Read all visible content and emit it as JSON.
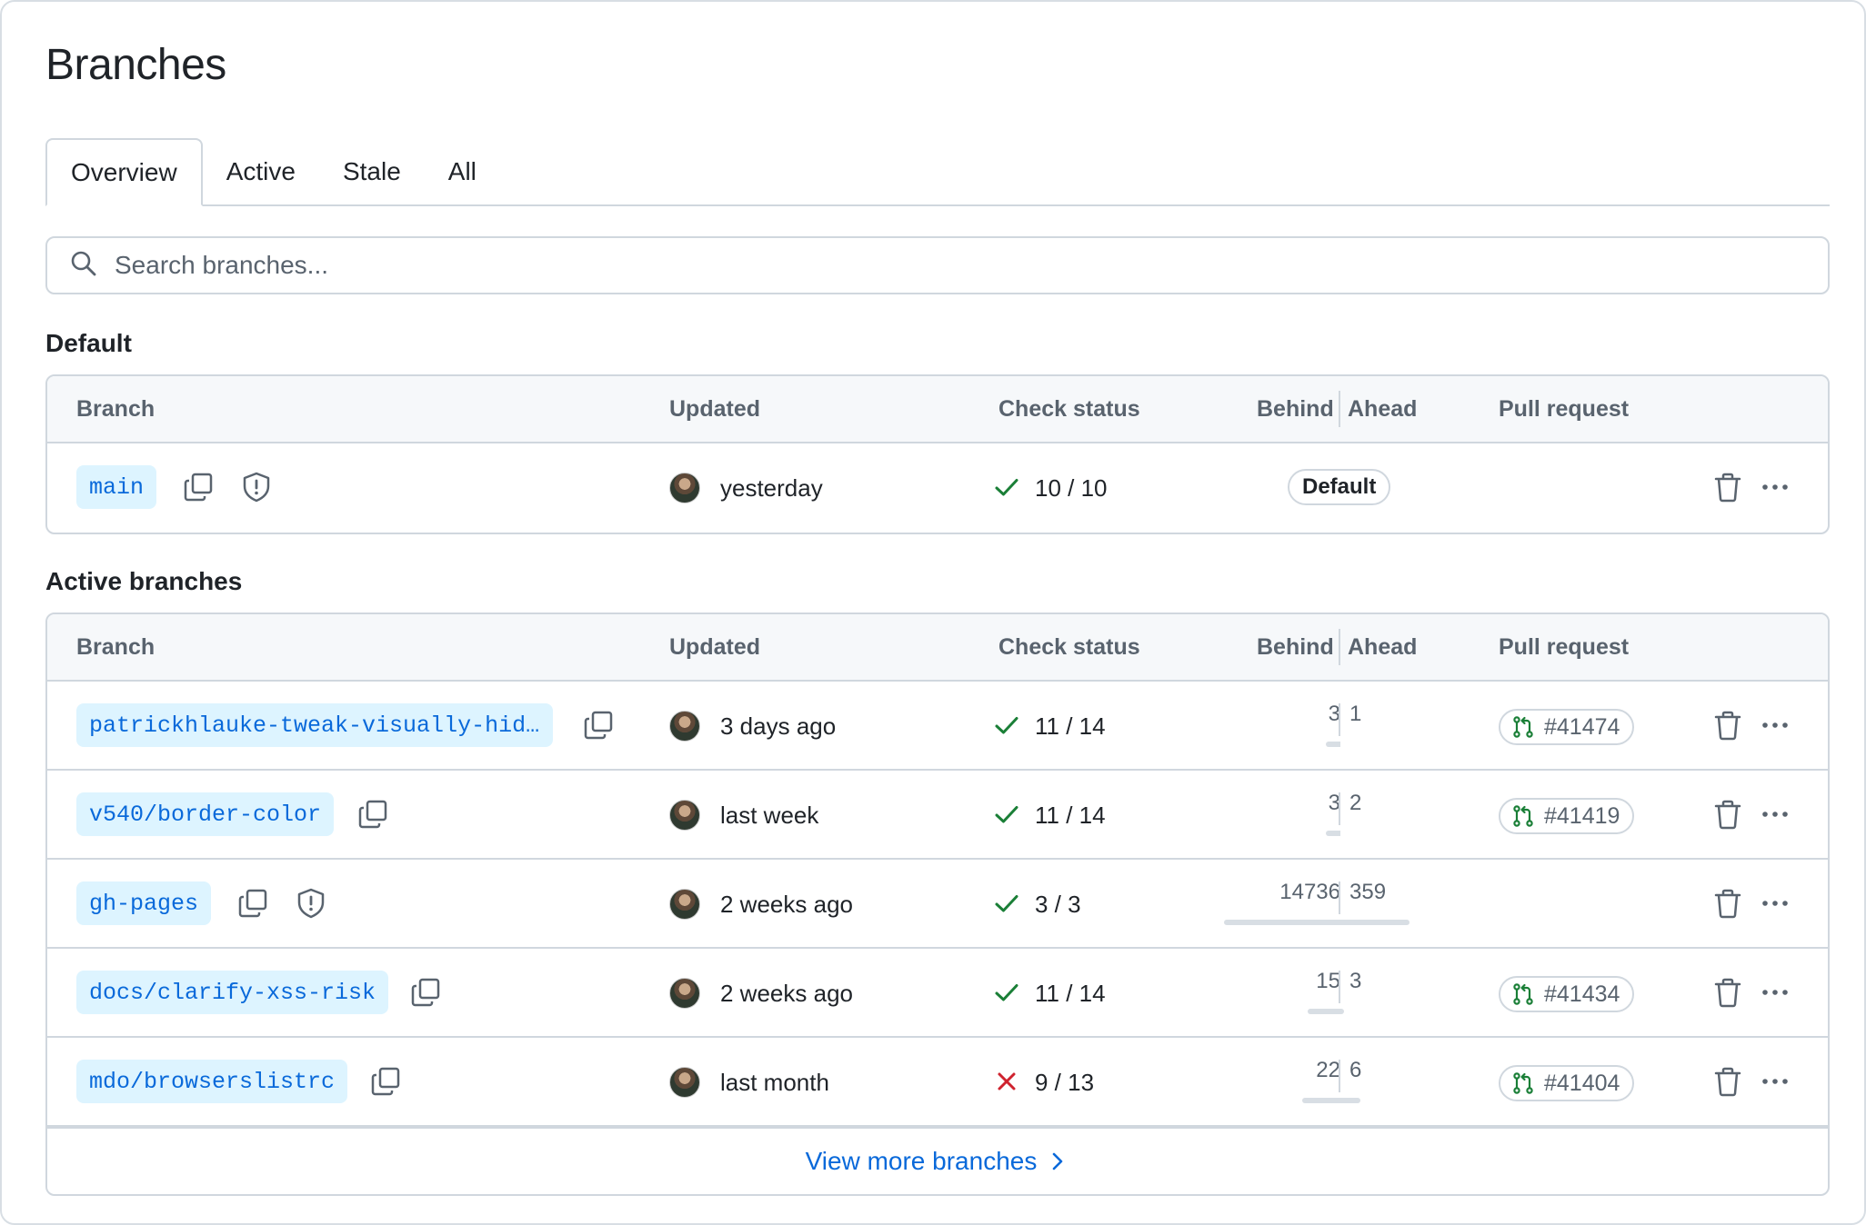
{
  "page": {
    "title": "Branches"
  },
  "tabs": [
    {
      "label": "Overview",
      "selected": true
    },
    {
      "label": "Active",
      "selected": false
    },
    {
      "label": "Stale",
      "selected": false
    },
    {
      "label": "All",
      "selected": false
    }
  ],
  "search": {
    "placeholder": "Search branches..."
  },
  "columns": {
    "branch": "Branch",
    "updated": "Updated",
    "check_status": "Check status",
    "behind": "Behind",
    "ahead": "Ahead",
    "pull_request": "Pull request"
  },
  "default_section": {
    "heading": "Default",
    "row": {
      "name": "main",
      "updated": "yesterday",
      "check": "10 / 10",
      "check_state": "success",
      "badge": "Default",
      "protected": true
    }
  },
  "active_section": {
    "heading": "Active branches",
    "rows": [
      {
        "name": "patrickhlauke-tweak-visually-hid…",
        "updated": "3 days ago",
        "check": "11 / 14",
        "check_state": "success",
        "behind": "3",
        "ahead": "1",
        "pr": "#41474",
        "protected": false
      },
      {
        "name": "v540/border-color",
        "updated": "last week",
        "check": "11 / 14",
        "check_state": "success",
        "behind": "3",
        "ahead": "2",
        "pr": "#41419",
        "protected": false
      },
      {
        "name": "gh-pages",
        "updated": "2 weeks ago",
        "check": "3 / 3",
        "check_state": "success",
        "behind": "14736",
        "ahead": "359",
        "pr": "",
        "protected": true
      },
      {
        "name": "docs/clarify-xss-risk",
        "updated": "2 weeks ago",
        "check": "11 / 14",
        "check_state": "success",
        "behind": "15",
        "ahead": "3",
        "pr": "#41434",
        "protected": false
      },
      {
        "name": "mdo/browserslistrc",
        "updated": "last month",
        "check": "9 / 13",
        "check_state": "failure",
        "behind": "22",
        "ahead": "6",
        "pr": "#41404",
        "protected": false
      }
    ],
    "view_more": "View more branches"
  },
  "colors": {
    "accent": "#0969da",
    "success": "#1a7f37",
    "danger": "#cf222e",
    "muted": "#59636e",
    "branch_bg": "#ddf4ff",
    "border": "#d0d7de"
  },
  "icons": {
    "search": "search-icon",
    "copy": "copy-icon",
    "shield": "shield-icon",
    "check": "check-icon",
    "x": "x-icon",
    "pr": "git-pull-request-icon",
    "trash": "trash-icon",
    "more": "kebab-horizontal-icon",
    "chevron": "chevron-right-icon"
  }
}
